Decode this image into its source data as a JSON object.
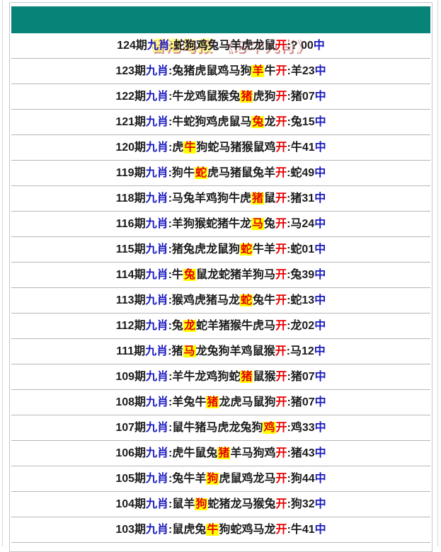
{
  "header": {
    "title_site": "香港马报",
    "title_separator": " ",
    "title_feature": "《必中九肖》"
  },
  "labels": {
    "issue_suffix": "期",
    "category": "九肖",
    "colon": ":",
    "open": "开",
    "hit": "中"
  },
  "colors": {
    "teal": "#078377",
    "title_yellow": "#ffff80",
    "title_white": "#ffffff",
    "black": "#1c1c1c",
    "blue": "#1a1ac0",
    "red": "#e80000",
    "hl_bg": "#ffff00",
    "hl_text": "#e60000"
  },
  "rows": [
    {
      "issue": "124",
      "animals": "蛇狗鸡兔马羊虎龙鼠",
      "highlight": "",
      "result": "? 00"
    },
    {
      "issue": "123",
      "animals": "兔猪虎鼠鸡马狗羊牛",
      "highlight": "羊",
      "result": "羊23"
    },
    {
      "issue": "122",
      "animals": "牛龙鸡鼠猴兔猪虎狗",
      "highlight": "猪",
      "result": "猪07"
    },
    {
      "issue": "121",
      "animals": "牛蛇狗鸡虎鼠马兔龙",
      "highlight": "兔",
      "result": "兔15"
    },
    {
      "issue": "120",
      "animals": "虎牛狗蛇马猪猴鼠鸡",
      "highlight": "牛",
      "result": "牛41"
    },
    {
      "issue": "119",
      "animals": "狗牛蛇虎马猪鼠兔羊",
      "highlight": "蛇",
      "result": "蛇49"
    },
    {
      "issue": "118",
      "animals": "马兔羊鸡狗牛虎猪鼠",
      "highlight": "猪",
      "result": "猪31"
    },
    {
      "issue": "116",
      "animals": "羊狗猴蛇猪牛龙马兔",
      "highlight": "马",
      "result": "马24"
    },
    {
      "issue": "115",
      "animals": "猪兔虎龙鼠狗蛇牛羊",
      "highlight": "蛇",
      "result": "蛇01"
    },
    {
      "issue": "114",
      "animals": "牛兔鼠龙蛇猪羊狗马",
      "highlight": "兔",
      "result": "兔39"
    },
    {
      "issue": "113",
      "animals": "猴鸡虎猪马龙蛇兔牛",
      "highlight": "蛇",
      "result": "蛇13"
    },
    {
      "issue": "112",
      "animals": "兔龙蛇羊猪猴牛虎马",
      "highlight": "龙",
      "result": "龙02"
    },
    {
      "issue": "111",
      "animals": "猪马龙兔狗羊鸡鼠猴",
      "highlight": "马",
      "result": "马12"
    },
    {
      "issue": "109",
      "animals": "羊牛龙鸡狗蛇猪鼠猴",
      "highlight": "猪",
      "result": "猪07"
    },
    {
      "issue": "108",
      "animals": "羊兔牛猪龙虎马鼠狗",
      "highlight": "猪",
      "result": "猪07"
    },
    {
      "issue": "107",
      "animals": "鼠牛猪马虎龙兔狗鸡",
      "highlight": "鸡",
      "result": "鸡33"
    },
    {
      "issue": "106",
      "animals": "虎牛鼠兔猪羊马狗鸡",
      "highlight": "猪",
      "result": "猪43"
    },
    {
      "issue": "105",
      "animals": "兔牛羊狗虎鼠鸡龙马",
      "highlight": "狗",
      "result": "狗44"
    },
    {
      "issue": "104",
      "animals": "鼠羊狗蛇猪龙马猴兔",
      "highlight": "狗",
      "result": "狗32"
    },
    {
      "issue": "103",
      "animals": "鼠虎兔牛狗蛇鸡马龙",
      "highlight": "牛",
      "result": "牛41"
    }
  ]
}
